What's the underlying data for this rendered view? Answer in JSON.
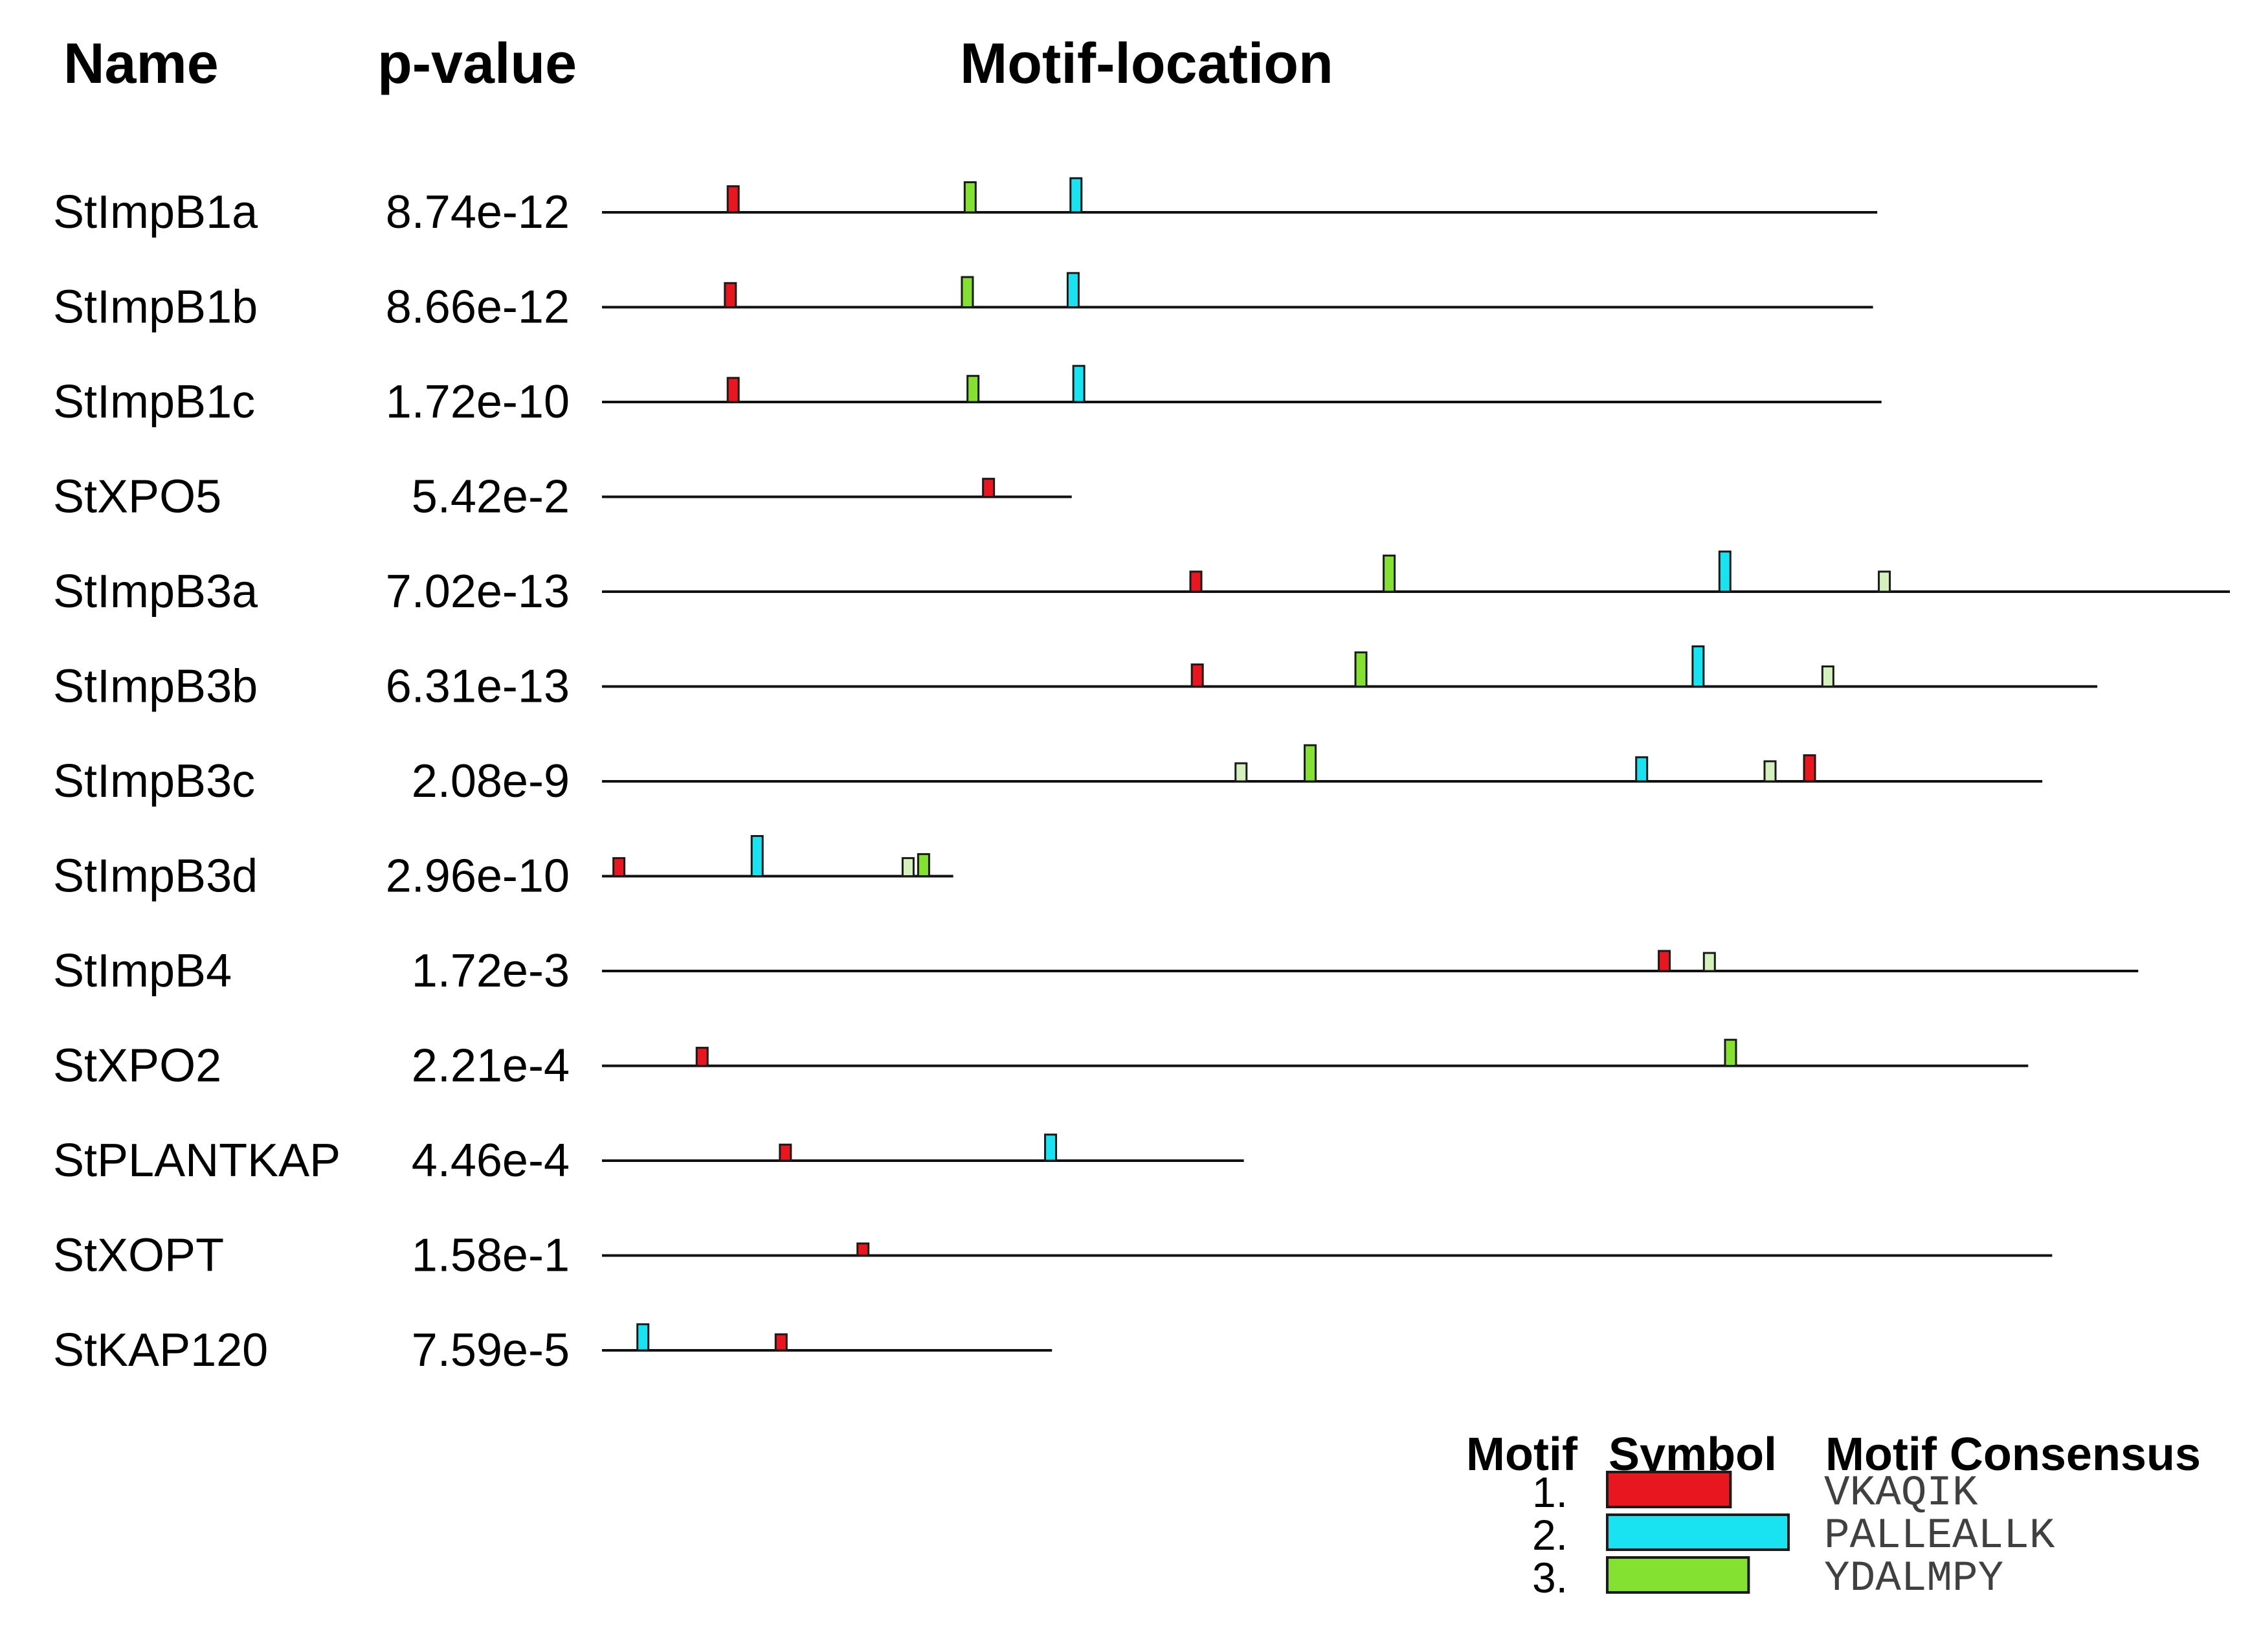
{
  "headers": {
    "name": "Name",
    "pvalue": "p-value",
    "location": "Motif-location"
  },
  "scale": {
    "max_length": 1154
  },
  "sequences": [
    {
      "name": "StImpB1a",
      "pvalue": "8.74e-12",
      "length": 904,
      "motifs": [
        {
          "type": "red",
          "pos": 93,
          "strength": 0.65
        },
        {
          "type": "green",
          "pos": 261,
          "strength": 0.75
        },
        {
          "type": "cyan",
          "pos": 336,
          "strength": 0.85
        }
      ]
    },
    {
      "name": "StImpB1b",
      "pvalue": "8.66e-12",
      "length": 901,
      "motifs": [
        {
          "type": "red",
          "pos": 91,
          "strength": 0.6
        },
        {
          "type": "green",
          "pos": 259,
          "strength": 0.75
        },
        {
          "type": "cyan",
          "pos": 334,
          "strength": 0.85
        }
      ]
    },
    {
      "name": "StImpB1c",
      "pvalue": "1.72e-10",
      "length": 907,
      "motifs": [
        {
          "type": "red",
          "pos": 93,
          "strength": 0.6
        },
        {
          "type": "green",
          "pos": 263,
          "strength": 0.65
        },
        {
          "type": "cyan",
          "pos": 338,
          "strength": 0.9
        }
      ]
    },
    {
      "name": "StXPO5",
      "pvalue": "5.42e-2",
      "length": 333,
      "motifs": [
        {
          "type": "red",
          "pos": 274,
          "strength": 0.45
        }
      ]
    },
    {
      "name": "StImpB3a",
      "pvalue": "7.02e-13",
      "length": 1154,
      "motifs": [
        {
          "type": "red",
          "pos": 421,
          "strength": 0.5
        },
        {
          "type": "green",
          "pos": 558,
          "strength": 0.9
        },
        {
          "type": "cyan",
          "pos": 796,
          "strength": 1.0
        },
        {
          "type": "green-weak",
          "pos": 909,
          "strength": 0.5
        }
      ]
    },
    {
      "name": "StImpB3b",
      "pvalue": "6.31e-13",
      "length": 1060,
      "motifs": [
        {
          "type": "red",
          "pos": 422,
          "strength": 0.55
        },
        {
          "type": "green",
          "pos": 538,
          "strength": 0.85
        },
        {
          "type": "cyan",
          "pos": 777,
          "strength": 1.0
        },
        {
          "type": "green-weak",
          "pos": 869,
          "strength": 0.5
        }
      ]
    },
    {
      "name": "StImpB3c",
      "pvalue": "2.08e-9",
      "length": 1021,
      "motifs": [
        {
          "type": "green-weak",
          "pos": 453,
          "strength": 0.45
        },
        {
          "type": "green",
          "pos": 502,
          "strength": 0.9
        },
        {
          "type": "cyan",
          "pos": 737,
          "strength": 0.6
        },
        {
          "type": "green-weak",
          "pos": 828,
          "strength": 0.5
        },
        {
          "type": "red",
          "pos": 856,
          "strength": 0.65
        }
      ]
    },
    {
      "name": "StImpB3d",
      "pvalue": "2.96e-10",
      "length": 249,
      "motifs": [
        {
          "type": "red",
          "pos": 12,
          "strength": 0.45
        },
        {
          "type": "cyan",
          "pos": 110,
          "strength": 1.0
        },
        {
          "type": "green-weak",
          "pos": 217,
          "strength": 0.45
        },
        {
          "type": "green",
          "pos": 228,
          "strength": 0.55
        }
      ]
    },
    {
      "name": "StImpB4",
      "pvalue": "1.72e-3",
      "length": 1089,
      "motifs": [
        {
          "type": "red",
          "pos": 753,
          "strength": 0.5
        },
        {
          "type": "green-weak",
          "pos": 785,
          "strength": 0.45
        }
      ]
    },
    {
      "name": "StXPO2",
      "pvalue": "2.21e-4",
      "length": 1011,
      "motifs": [
        {
          "type": "red",
          "pos": 71,
          "strength": 0.45
        },
        {
          "type": "green",
          "pos": 800,
          "strength": 0.65
        }
      ]
    },
    {
      "name": "StPLANTKAP",
      "pvalue": "4.46e-4",
      "length": 455,
      "motifs": [
        {
          "type": "red",
          "pos": 130,
          "strength": 0.4
        },
        {
          "type": "cyan",
          "pos": 318,
          "strength": 0.65
        }
      ]
    },
    {
      "name": "StXOPT",
      "pvalue": "1.58e-1",
      "length": 1028,
      "motifs": [
        {
          "type": "red",
          "pos": 185,
          "strength": 0.3
        }
      ]
    },
    {
      "name": "StKAP120",
      "pvalue": "7.59e-5",
      "length": 319,
      "motifs": [
        {
          "type": "cyan",
          "pos": 29,
          "strength": 0.65
        },
        {
          "type": "red",
          "pos": 127,
          "strength": 0.4
        }
      ]
    }
  ],
  "motif_colors": {
    "red": "#e8161e",
    "cyan": "#19e3f1",
    "green": "#84e132",
    "green-weak": "#d4f0bc"
  },
  "legend": {
    "headers": {
      "motif": "Motif",
      "symbol": "Symbol",
      "consensus": "Motif Consensus"
    },
    "items": [
      {
        "number": "1.",
        "color": "#e8161e",
        "consensus": "VKAQIK",
        "width_fraction": 0.68
      },
      {
        "number": "2.",
        "color": "#19e3f1",
        "consensus": "PALLEALLK",
        "width_fraction": 1.0
      },
      {
        "number": "3.",
        "color": "#84e132",
        "consensus": "YDALMPY",
        "width_fraction": 0.78
      }
    ]
  }
}
